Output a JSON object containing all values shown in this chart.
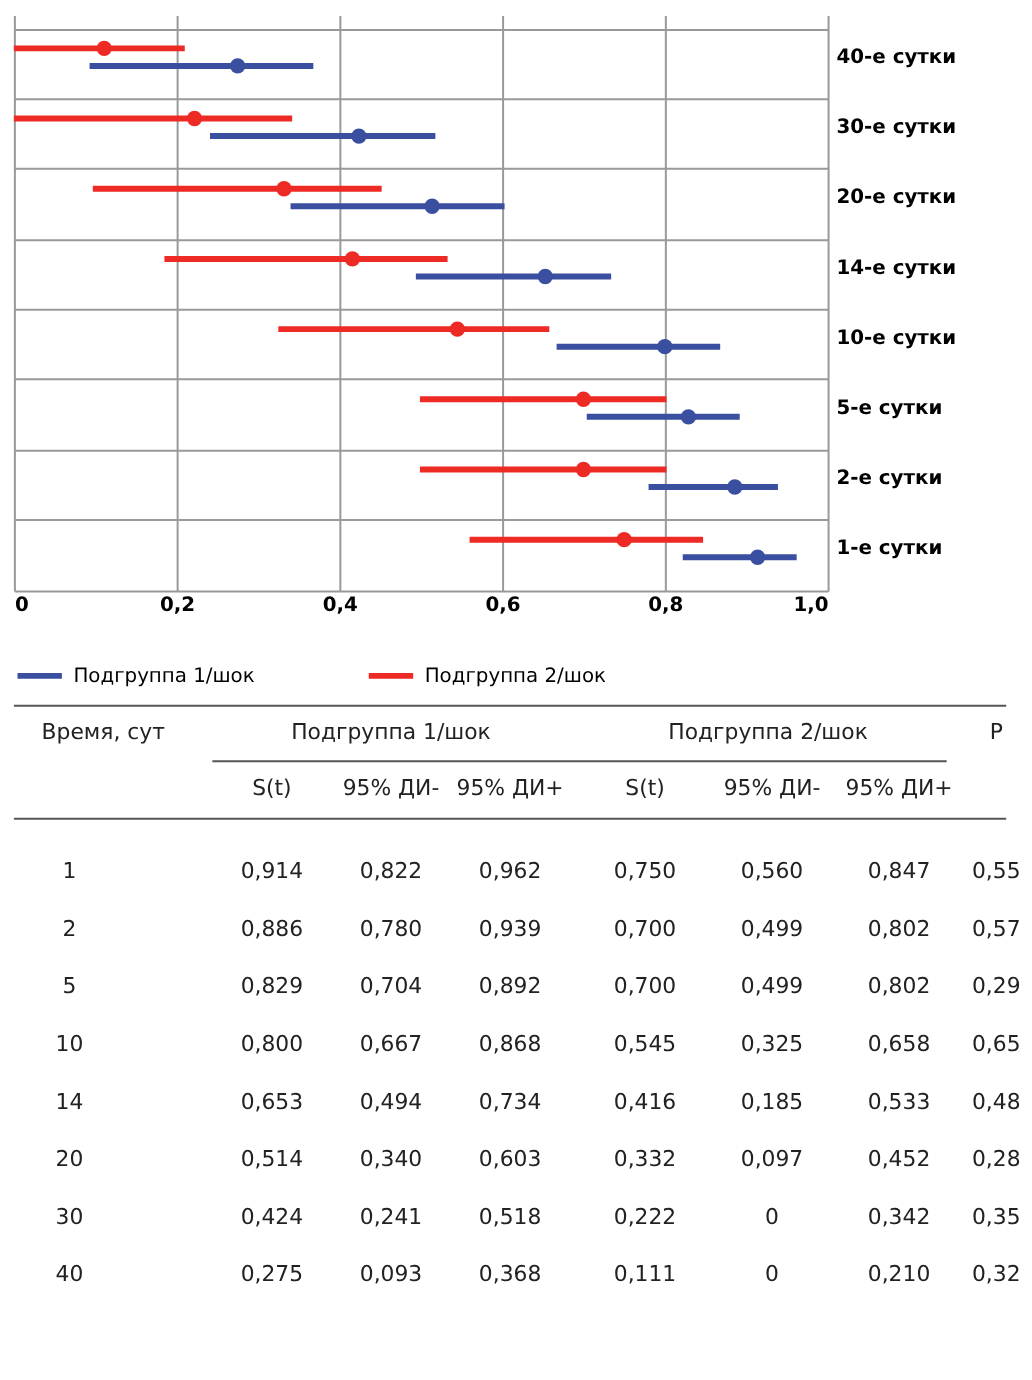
{
  "chart_data": {
    "type": "scatter",
    "orientation": "horizontal",
    "marker": "circle",
    "grid": true,
    "legend": "bottom",
    "categories": [
      "40-е сутки",
      "30-е сутки",
      "20-е сутки",
      "14-е сутки",
      "10-е сутки",
      "5-е сутки",
      "2-е сутки",
      "1-е сутки"
    ],
    "xlim": [
      0,
      1
    ],
    "xticks": [
      0,
      {
        "value": 0.2,
        "label": "0,2"
      },
      {
        "value": 0.4,
        "label": "0,4"
      },
      {
        "value": 0.6,
        "label": "0,6"
      },
      {
        "value": 0.8,
        "label": "0,8"
      },
      {
        "value": 1.0,
        "label": "1,0"
      }
    ],
    "series": [
      {
        "name": "Подгруппа 1/шок",
        "color": "#3a4fa0",
        "values": [
          0.275,
          0.424,
          0.514,
          0.653,
          0.8,
          0.829,
          0.886,
          0.914
        ],
        "errors": [
          [
            0.093,
            0.368
          ],
          [
            0.241,
            0.518
          ],
          [
            0.34,
            0.603
          ],
          [
            0.494,
            0.734
          ],
          [
            0.667,
            0.868
          ],
          [
            0.704,
            0.892
          ],
          [
            0.78,
            0.939
          ],
          [
            0.822,
            0.962
          ]
        ]
      },
      {
        "name": "Подгруппа 2/шок",
        "color": "#ee2a24",
        "values": [
          0.111,
          0.222,
          0.332,
          0.416,
          0.545,
          0.7,
          0.7,
          0.75
        ],
        "errors": [
          [
            0,
            0.21
          ],
          [
            0,
            0.342
          ],
          [
            0.097,
            0.452
          ],
          [
            0.185,
            0.533
          ],
          [
            0.325,
            0.658
          ],
          [
            0.499,
            0.802
          ],
          [
            0.499,
            0.802
          ],
          [
            0.56,
            0.847
          ]
        ]
      }
    ],
    "annotations": [
      "Время, сут",
      "Подгруппа 1/шок",
      "Подгруппа 2/шок",
      "P",
      "S(t)",
      "95% ДИ-",
      "95% ДИ+",
      "S(t)",
      "95% ДИ-",
      "95% ДИ+",
      "1",
      "0,914",
      "0,822",
      "0,962",
      "0,750",
      "0,560",
      "0,847",
      "0,55",
      "2",
      "0,886",
      "0,780",
      "0,939",
      "0,700",
      "0,499",
      "0,802",
      "0,57",
      "5",
      "0,829",
      "0,704",
      "0,892",
      "0,700",
      "0,499",
      "0,802",
      "0,29",
      "10",
      "0,800",
      "0,667",
      "0,868",
      "0,545",
      "0,325",
      "0,658",
      "0,65",
      "14",
      "0,653",
      "0,494",
      "0,734",
      "0,416",
      "0,185",
      "0,533",
      "0,48",
      "20",
      "0,514",
      "0,340",
      "0,603",
      "0,332",
      "0,097",
      "0,452",
      "0,28",
      "30",
      "0,424",
      "0,241",
      "0,518",
      "0,222",
      "0",
      "0,342",
      "0,35",
      "40",
      "0,275",
      "0,093",
      "0,368",
      "0,111",
      "0",
      "0,210",
      "0,32"
    ]
  }
}
